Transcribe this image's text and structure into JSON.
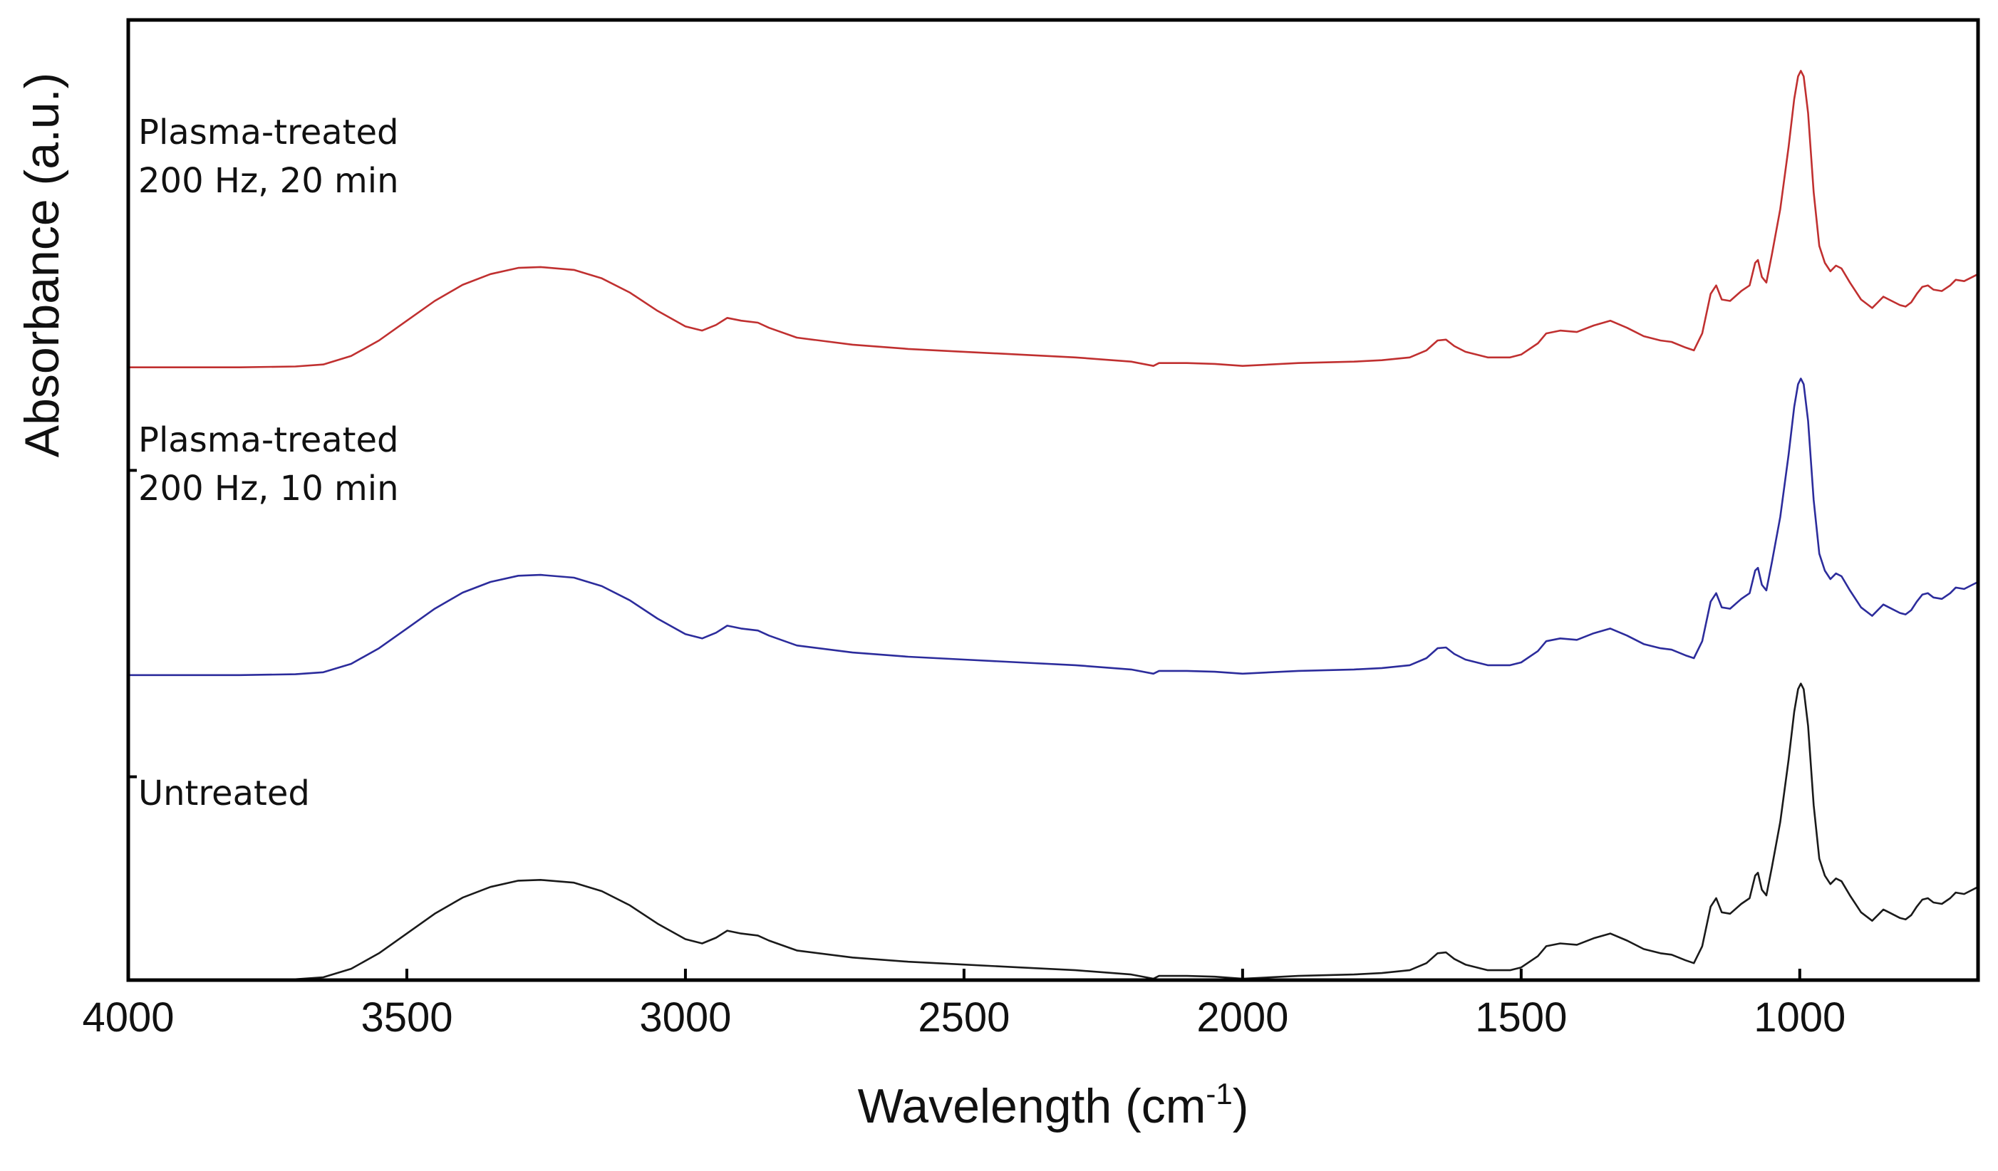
{
  "chart_data": {
    "type": "line",
    "title": "",
    "xlabel": "Wavelength (cm",
    "xlabel_superscript": "-1",
    "xlabel_suffix": ")",
    "ylabel": "Absorbance (a.u.)",
    "xlim": [
      4000,
      680
    ],
    "x_reversed": true,
    "ylim": [
      0,
      3.4
    ],
    "y_ticks_shown": false,
    "grid": false,
    "x_ticks": [
      4000,
      3500,
      3000,
      2500,
      2000,
      1500,
      1000
    ],
    "x_tick_labels": [
      "4000",
      "3500",
      "3000",
      "2500",
      "2000",
      "1500",
      "1000"
    ],
    "series": [
      {
        "name": "Plasma-treated 200 Hz, 20 min",
        "label_lines": [
          "Plasma-treated",
          "200 Hz, 20 min"
        ],
        "color": "#c03030",
        "offset": 2.17,
        "points": [
          [
            4000,
            0.0
          ],
          [
            3800,
            0.0
          ],
          [
            3700,
            0.003
          ],
          [
            3650,
            0.01
          ],
          [
            3600,
            0.04
          ],
          [
            3550,
            0.095
          ],
          [
            3500,
            0.165
          ],
          [
            3450,
            0.235
          ],
          [
            3400,
            0.292
          ],
          [
            3350,
            0.33
          ],
          [
            3300,
            0.352
          ],
          [
            3260,
            0.355
          ],
          [
            3200,
            0.345
          ],
          [
            3150,
            0.315
          ],
          [
            3100,
            0.265
          ],
          [
            3050,
            0.2
          ],
          [
            3000,
            0.145
          ],
          [
            2970,
            0.13
          ],
          [
            2945,
            0.15
          ],
          [
            2925,
            0.175
          ],
          [
            2900,
            0.165
          ],
          [
            2870,
            0.158
          ],
          [
            2850,
            0.14
          ],
          [
            2800,
            0.105
          ],
          [
            2700,
            0.08
          ],
          [
            2600,
            0.065
          ],
          [
            2500,
            0.055
          ],
          [
            2400,
            0.045
          ],
          [
            2300,
            0.035
          ],
          [
            2200,
            0.02
          ],
          [
            2160,
            0.005
          ],
          [
            2150,
            0.015
          ],
          [
            2100,
            0.015
          ],
          [
            2050,
            0.012
          ],
          [
            2000,
            0.005
          ],
          [
            1900,
            0.015
          ],
          [
            1800,
            0.02
          ],
          [
            1750,
            0.025
          ],
          [
            1700,
            0.035
          ],
          [
            1670,
            0.06
          ],
          [
            1650,
            0.095
          ],
          [
            1635,
            0.098
          ],
          [
            1620,
            0.075
          ],
          [
            1600,
            0.055
          ],
          [
            1560,
            0.035
          ],
          [
            1520,
            0.035
          ],
          [
            1500,
            0.045
          ],
          [
            1470,
            0.085
          ],
          [
            1455,
            0.12
          ],
          [
            1430,
            0.13
          ],
          [
            1400,
            0.125
          ],
          [
            1370,
            0.148
          ],
          [
            1340,
            0.165
          ],
          [
            1310,
            0.14
          ],
          [
            1280,
            0.11
          ],
          [
            1250,
            0.095
          ],
          [
            1230,
            0.09
          ],
          [
            1205,
            0.07
          ],
          [
            1190,
            0.06
          ],
          [
            1175,
            0.12
          ],
          [
            1160,
            0.26
          ],
          [
            1150,
            0.29
          ],
          [
            1140,
            0.24
          ],
          [
            1125,
            0.235
          ],
          [
            1105,
            0.27
          ],
          [
            1090,
            0.29
          ],
          [
            1080,
            0.37
          ],
          [
            1075,
            0.38
          ],
          [
            1068,
            0.32
          ],
          [
            1060,
            0.3
          ],
          [
            1050,
            0.4
          ],
          [
            1035,
            0.56
          ],
          [
            1020,
            0.78
          ],
          [
            1010,
            0.95
          ],
          [
            1003,
            1.03
          ],
          [
            998,
            1.05
          ],
          [
            993,
            1.03
          ],
          [
            985,
            0.9
          ],
          [
            975,
            0.62
          ],
          [
            965,
            0.43
          ],
          [
            955,
            0.37
          ],
          [
            945,
            0.34
          ],
          [
            935,
            0.36
          ],
          [
            925,
            0.35
          ],
          [
            910,
            0.3
          ],
          [
            890,
            0.24
          ],
          [
            870,
            0.21
          ],
          [
            860,
            0.23
          ],
          [
            850,
            0.25
          ],
          [
            840,
            0.24
          ],
          [
            820,
            0.22
          ],
          [
            810,
            0.215
          ],
          [
            800,
            0.23
          ],
          [
            790,
            0.26
          ],
          [
            780,
            0.285
          ],
          [
            770,
            0.29
          ],
          [
            760,
            0.275
          ],
          [
            745,
            0.27
          ],
          [
            730,
            0.29
          ],
          [
            720,
            0.31
          ],
          [
            705,
            0.305
          ],
          [
            690,
            0.32
          ],
          [
            680,
            0.33
          ]
        ]
      },
      {
        "name": "Plasma-treated 200 Hz, 10 min",
        "label_lines": [
          "Plasma-treated",
          "200 Hz, 10 min"
        ],
        "color": "#2c2c9c",
        "offset": 1.08,
        "points": [
          [
            4000,
            0.0
          ],
          [
            3800,
            0.0
          ],
          [
            3700,
            0.003
          ],
          [
            3650,
            0.01
          ],
          [
            3600,
            0.04
          ],
          [
            3550,
            0.095
          ],
          [
            3500,
            0.165
          ],
          [
            3450,
            0.235
          ],
          [
            3400,
            0.292
          ],
          [
            3350,
            0.33
          ],
          [
            3300,
            0.352
          ],
          [
            3260,
            0.355
          ],
          [
            3200,
            0.345
          ],
          [
            3150,
            0.315
          ],
          [
            3100,
            0.265
          ],
          [
            3050,
            0.2
          ],
          [
            3000,
            0.145
          ],
          [
            2970,
            0.13
          ],
          [
            2945,
            0.15
          ],
          [
            2925,
            0.175
          ],
          [
            2900,
            0.165
          ],
          [
            2870,
            0.158
          ],
          [
            2850,
            0.14
          ],
          [
            2800,
            0.105
          ],
          [
            2700,
            0.08
          ],
          [
            2600,
            0.065
          ],
          [
            2500,
            0.055
          ],
          [
            2400,
            0.045
          ],
          [
            2300,
            0.035
          ],
          [
            2200,
            0.02
          ],
          [
            2160,
            0.005
          ],
          [
            2150,
            0.015
          ],
          [
            2100,
            0.015
          ],
          [
            2050,
            0.012
          ],
          [
            2000,
            0.005
          ],
          [
            1900,
            0.015
          ],
          [
            1800,
            0.02
          ],
          [
            1750,
            0.025
          ],
          [
            1700,
            0.035
          ],
          [
            1670,
            0.06
          ],
          [
            1650,
            0.095
          ],
          [
            1635,
            0.098
          ],
          [
            1620,
            0.075
          ],
          [
            1600,
            0.055
          ],
          [
            1560,
            0.035
          ],
          [
            1520,
            0.035
          ],
          [
            1500,
            0.045
          ],
          [
            1470,
            0.085
          ],
          [
            1455,
            0.12
          ],
          [
            1430,
            0.13
          ],
          [
            1400,
            0.125
          ],
          [
            1370,
            0.148
          ],
          [
            1340,
            0.165
          ],
          [
            1310,
            0.14
          ],
          [
            1280,
            0.11
          ],
          [
            1250,
            0.095
          ],
          [
            1230,
            0.09
          ],
          [
            1205,
            0.07
          ],
          [
            1190,
            0.06
          ],
          [
            1175,
            0.12
          ],
          [
            1160,
            0.26
          ],
          [
            1150,
            0.29
          ],
          [
            1140,
            0.24
          ],
          [
            1125,
            0.235
          ],
          [
            1105,
            0.27
          ],
          [
            1090,
            0.29
          ],
          [
            1080,
            0.37
          ],
          [
            1075,
            0.38
          ],
          [
            1068,
            0.32
          ],
          [
            1060,
            0.3
          ],
          [
            1050,
            0.4
          ],
          [
            1035,
            0.56
          ],
          [
            1020,
            0.78
          ],
          [
            1010,
            0.95
          ],
          [
            1003,
            1.03
          ],
          [
            998,
            1.05
          ],
          [
            993,
            1.03
          ],
          [
            985,
            0.9
          ],
          [
            975,
            0.62
          ],
          [
            965,
            0.43
          ],
          [
            955,
            0.37
          ],
          [
            945,
            0.34
          ],
          [
            935,
            0.36
          ],
          [
            925,
            0.35
          ],
          [
            910,
            0.3
          ],
          [
            890,
            0.24
          ],
          [
            870,
            0.21
          ],
          [
            860,
            0.23
          ],
          [
            850,
            0.25
          ],
          [
            840,
            0.24
          ],
          [
            820,
            0.22
          ],
          [
            810,
            0.215
          ],
          [
            800,
            0.23
          ],
          [
            790,
            0.26
          ],
          [
            780,
            0.285
          ],
          [
            770,
            0.29
          ],
          [
            760,
            0.275
          ],
          [
            745,
            0.27
          ],
          [
            730,
            0.29
          ],
          [
            720,
            0.31
          ],
          [
            705,
            0.305
          ],
          [
            690,
            0.32
          ],
          [
            680,
            0.33
          ]
        ]
      },
      {
        "name": "Untreated",
        "label_lines": [
          "Untreated"
        ],
        "color": "#1a1a1a",
        "offset": 0.0,
        "points": [
          [
            4000,
            0.0
          ],
          [
            3800,
            0.0
          ],
          [
            3700,
            0.003
          ],
          [
            3650,
            0.01
          ],
          [
            3600,
            0.04
          ],
          [
            3550,
            0.095
          ],
          [
            3500,
            0.165
          ],
          [
            3450,
            0.235
          ],
          [
            3400,
            0.292
          ],
          [
            3350,
            0.33
          ],
          [
            3300,
            0.352
          ],
          [
            3260,
            0.355
          ],
          [
            3200,
            0.345
          ],
          [
            3150,
            0.315
          ],
          [
            3100,
            0.265
          ],
          [
            3050,
            0.2
          ],
          [
            3000,
            0.145
          ],
          [
            2970,
            0.13
          ],
          [
            2945,
            0.15
          ],
          [
            2925,
            0.175
          ],
          [
            2900,
            0.165
          ],
          [
            2870,
            0.158
          ],
          [
            2850,
            0.14
          ],
          [
            2800,
            0.105
          ],
          [
            2700,
            0.08
          ],
          [
            2600,
            0.065
          ],
          [
            2500,
            0.055
          ],
          [
            2400,
            0.045
          ],
          [
            2300,
            0.035
          ],
          [
            2200,
            0.02
          ],
          [
            2160,
            0.005
          ],
          [
            2150,
            0.015
          ],
          [
            2100,
            0.015
          ],
          [
            2050,
            0.012
          ],
          [
            2000,
            0.005
          ],
          [
            1900,
            0.015
          ],
          [
            1800,
            0.02
          ],
          [
            1750,
            0.025
          ],
          [
            1700,
            0.035
          ],
          [
            1670,
            0.06
          ],
          [
            1650,
            0.095
          ],
          [
            1635,
            0.098
          ],
          [
            1620,
            0.075
          ],
          [
            1600,
            0.055
          ],
          [
            1560,
            0.035
          ],
          [
            1520,
            0.035
          ],
          [
            1500,
            0.045
          ],
          [
            1470,
            0.085
          ],
          [
            1455,
            0.12
          ],
          [
            1430,
            0.13
          ],
          [
            1400,
            0.125
          ],
          [
            1370,
            0.148
          ],
          [
            1340,
            0.165
          ],
          [
            1310,
            0.14
          ],
          [
            1280,
            0.11
          ],
          [
            1250,
            0.095
          ],
          [
            1230,
            0.09
          ],
          [
            1205,
            0.07
          ],
          [
            1190,
            0.06
          ],
          [
            1175,
            0.12
          ],
          [
            1160,
            0.26
          ],
          [
            1150,
            0.29
          ],
          [
            1140,
            0.24
          ],
          [
            1125,
            0.235
          ],
          [
            1105,
            0.27
          ],
          [
            1090,
            0.29
          ],
          [
            1080,
            0.37
          ],
          [
            1075,
            0.38
          ],
          [
            1068,
            0.32
          ],
          [
            1060,
            0.3
          ],
          [
            1050,
            0.4
          ],
          [
            1035,
            0.56
          ],
          [
            1020,
            0.78
          ],
          [
            1010,
            0.95
          ],
          [
            1003,
            1.03
          ],
          [
            998,
            1.05
          ],
          [
            993,
            1.03
          ],
          [
            985,
            0.9
          ],
          [
            975,
            0.62
          ],
          [
            965,
            0.43
          ],
          [
            955,
            0.37
          ],
          [
            945,
            0.34
          ],
          [
            935,
            0.36
          ],
          [
            925,
            0.35
          ],
          [
            910,
            0.3
          ],
          [
            890,
            0.24
          ],
          [
            870,
            0.21
          ],
          [
            860,
            0.23
          ],
          [
            850,
            0.25
          ],
          [
            840,
            0.24
          ],
          [
            820,
            0.22
          ],
          [
            810,
            0.215
          ],
          [
            800,
            0.23
          ],
          [
            790,
            0.26
          ],
          [
            780,
            0.285
          ],
          [
            770,
            0.29
          ],
          [
            760,
            0.275
          ],
          [
            745,
            0.27
          ],
          [
            730,
            0.29
          ],
          [
            720,
            0.31
          ],
          [
            705,
            0.305
          ],
          [
            690,
            0.32
          ],
          [
            680,
            0.33
          ]
        ]
      }
    ]
  }
}
